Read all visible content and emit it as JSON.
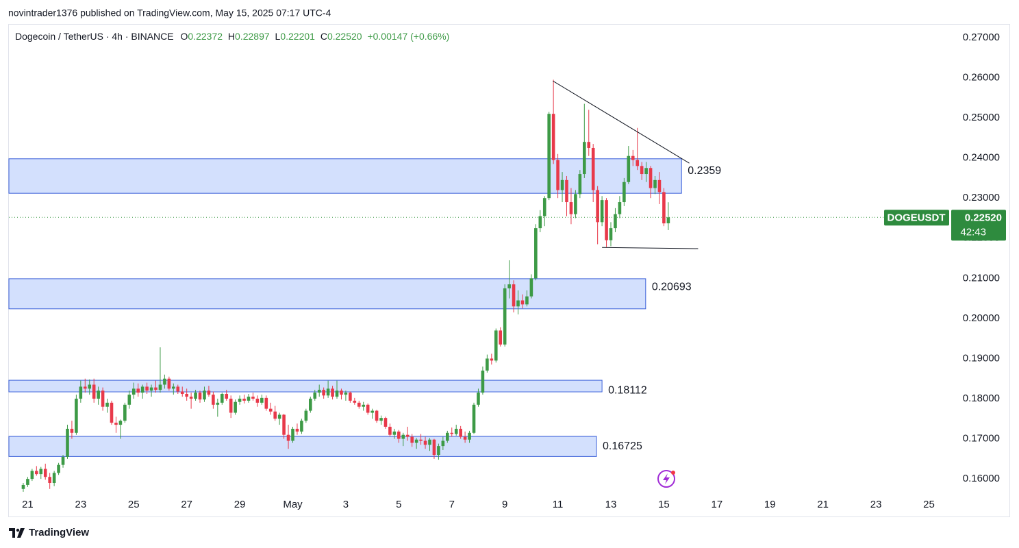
{
  "chart_data": {
    "type": "candlestick",
    "published": "novintrader1376 published on TradingView.com, May 15, 2025 07:17 UTC-4",
    "instrument": "Dogecoin / TetherUS · 4h · BINANCE",
    "legend": {
      "o_label": "O",
      "open": 0.22372,
      "h_label": "H",
      "high": 0.22897,
      "l_label": "L",
      "low": 0.22201,
      "c_label": "C",
      "close": {
        "value": 0.2252,
        "label": "0.22520"
      },
      "change": {
        "value": 0.00147,
        "label": "+0.00147"
      },
      "change_pct": {
        "value": 0.66,
        "label": "(+0.66%)"
      }
    },
    "brand": "TradingView",
    "up_color": "#3d9a46",
    "down_color": "#e8394a",
    "zone_color": "#d3e0fd",
    "zone_border": "#3a5fd9",
    "xlim": [
      "2025-04-20T07:00",
      "2025-05-25T22:00"
    ],
    "ylim": [
      0.1561,
      0.2734
    ],
    "grid": false,
    "yticks": [
      {
        "value": 0.16,
        "label": "0.16000"
      },
      {
        "value": 0.17,
        "label": "0.17000"
      },
      {
        "value": 0.18,
        "label": "0.18000"
      },
      {
        "value": 0.19,
        "label": "0.19000"
      },
      {
        "value": 0.2,
        "label": "0.20000"
      },
      {
        "value": 0.21,
        "label": "0.21000"
      },
      {
        "value": 0.22,
        "label": "0.22000"
      },
      {
        "value": 0.23,
        "label": "0.23000"
      },
      {
        "value": 0.24,
        "label": "0.24000"
      },
      {
        "value": 0.25,
        "label": "0.25000"
      },
      {
        "value": 0.26,
        "label": "0.26000"
      },
      {
        "value": 0.27,
        "label": "0.27000"
      }
    ],
    "xticks": [
      {
        "value": "2025-04-21T00:00",
        "label": "21"
      },
      {
        "value": "2025-04-23T00:00",
        "label": "23"
      },
      {
        "value": "2025-04-25T00:00",
        "label": "25"
      },
      {
        "value": "2025-04-27T00:00",
        "label": "27"
      },
      {
        "value": "2025-04-29T00:00",
        "label": "29"
      },
      {
        "value": "2025-05-01T00:00",
        "label": "May"
      },
      {
        "value": "2025-05-03T00:00",
        "label": "3"
      },
      {
        "value": "2025-05-05T00:00",
        "label": "5"
      },
      {
        "value": "2025-05-07T00:00",
        "label": "7"
      },
      {
        "value": "2025-05-09T00:00",
        "label": "9"
      },
      {
        "value": "2025-05-11T00:00",
        "label": "11"
      },
      {
        "value": "2025-05-13T00:00",
        "label": "13"
      },
      {
        "value": "2025-05-15T00:00",
        "label": "15"
      },
      {
        "value": "2025-05-17T00:00",
        "label": "17"
      },
      {
        "value": "2025-05-19T00:00",
        "label": "19"
      },
      {
        "value": "2025-05-21T00:00",
        "label": "21"
      },
      {
        "value": "2025-05-23T00:00",
        "label": "23"
      },
      {
        "value": "2025-05-25T00:00",
        "label": "25"
      }
    ],
    "x": [
      "2025-04-20T20:00",
      "2025-04-21T00:00",
      "2025-04-21T04:00",
      "2025-04-21T08:00",
      "2025-04-21T12:00",
      "2025-04-21T16:00",
      "2025-04-21T20:00",
      "2025-04-22T00:00",
      "2025-04-22T04:00",
      "2025-04-22T08:00",
      "2025-04-22T12:00",
      "2025-04-22T16:00",
      "2025-04-22T20:00",
      "2025-04-23T00:00",
      "2025-04-23T04:00",
      "2025-04-23T08:00",
      "2025-04-23T12:00",
      "2025-04-23T16:00",
      "2025-04-23T20:00",
      "2025-04-24T00:00",
      "2025-04-24T04:00",
      "2025-04-24T08:00",
      "2025-04-24T12:00",
      "2025-04-24T16:00",
      "2025-04-24T20:00",
      "2025-04-25T00:00",
      "2025-04-25T04:00",
      "2025-04-25T08:00",
      "2025-04-25T12:00",
      "2025-04-25T16:00",
      "2025-04-25T20:00",
      "2025-04-26T00:00",
      "2025-04-26T04:00",
      "2025-04-26T08:00",
      "2025-04-26T12:00",
      "2025-04-26T16:00",
      "2025-04-26T20:00",
      "2025-04-27T00:00",
      "2025-04-27T04:00",
      "2025-04-27T08:00",
      "2025-04-27T12:00",
      "2025-04-27T16:00",
      "2025-04-27T20:00",
      "2025-04-28T00:00",
      "2025-04-28T04:00",
      "2025-04-28T08:00",
      "2025-04-28T12:00",
      "2025-04-28T16:00",
      "2025-04-28T20:00",
      "2025-04-29T00:00",
      "2025-04-29T04:00",
      "2025-04-29T08:00",
      "2025-04-29T12:00",
      "2025-04-29T16:00",
      "2025-04-29T20:00",
      "2025-04-30T00:00",
      "2025-04-30T04:00",
      "2025-04-30T08:00",
      "2025-04-30T12:00",
      "2025-04-30T16:00",
      "2025-04-30T20:00",
      "2025-05-01T00:00",
      "2025-05-01T04:00",
      "2025-05-01T08:00",
      "2025-05-01T12:00",
      "2025-05-01T16:00",
      "2025-05-01T20:00",
      "2025-05-02T00:00",
      "2025-05-02T04:00",
      "2025-05-02T08:00",
      "2025-05-02T12:00",
      "2025-05-02T16:00",
      "2025-05-02T20:00",
      "2025-05-03T00:00",
      "2025-05-03T04:00",
      "2025-05-03T08:00",
      "2025-05-03T12:00",
      "2025-05-03T16:00",
      "2025-05-03T20:00",
      "2025-05-04T00:00",
      "2025-05-04T04:00",
      "2025-05-04T08:00",
      "2025-05-04T12:00",
      "2025-05-04T16:00",
      "2025-05-04T20:00",
      "2025-05-05T00:00",
      "2025-05-05T04:00",
      "2025-05-05T08:00",
      "2025-05-05T12:00",
      "2025-05-05T16:00",
      "2025-05-05T20:00",
      "2025-05-06T00:00",
      "2025-05-06T04:00",
      "2025-05-06T08:00",
      "2025-05-06T12:00",
      "2025-05-06T16:00",
      "2025-05-06T20:00",
      "2025-05-07T00:00",
      "2025-05-07T04:00",
      "2025-05-07T08:00",
      "2025-05-07T12:00",
      "2025-05-07T16:00",
      "2025-05-07T20:00",
      "2025-05-08T00:00",
      "2025-05-08T04:00",
      "2025-05-08T08:00",
      "2025-05-08T12:00",
      "2025-05-08T16:00",
      "2025-05-08T20:00",
      "2025-05-09T00:00",
      "2025-05-09T04:00",
      "2025-05-09T08:00",
      "2025-05-09T12:00",
      "2025-05-09T16:00",
      "2025-05-09T20:00",
      "2025-05-10T00:00",
      "2025-05-10T04:00",
      "2025-05-10T08:00",
      "2025-05-10T12:00",
      "2025-05-10T16:00",
      "2025-05-10T20:00",
      "2025-05-11T00:00",
      "2025-05-11T04:00",
      "2025-05-11T08:00",
      "2025-05-11T12:00",
      "2025-05-11T16:00",
      "2025-05-11T20:00",
      "2025-05-12T00:00",
      "2025-05-12T04:00",
      "2025-05-12T08:00",
      "2025-05-12T12:00",
      "2025-05-12T16:00",
      "2025-05-12T20:00",
      "2025-05-13T00:00",
      "2025-05-13T04:00",
      "2025-05-13T08:00",
      "2025-05-13T12:00",
      "2025-05-13T16:00",
      "2025-05-13T20:00",
      "2025-05-14T00:00",
      "2025-05-14T04:00",
      "2025-05-14T08:00",
      "2025-05-14T12:00",
      "2025-05-14T16:00",
      "2025-05-14T20:00",
      "2025-05-15T00:00",
      "2025-05-15T04:00"
    ],
    "ohlc": [
      [
        0.1575,
        0.159,
        0.1568,
        0.1585
      ],
      [
        0.1585,
        0.1605,
        0.158,
        0.16
      ],
      [
        0.16,
        0.1625,
        0.1595,
        0.162
      ],
      [
        0.162,
        0.1632,
        0.1608,
        0.1612
      ],
      [
        0.1612,
        0.163,
        0.16,
        0.1625
      ],
      [
        0.1625,
        0.1638,
        0.1598,
        0.1605
      ],
      [
        0.1605,
        0.1615,
        0.1575,
        0.159
      ],
      [
        0.159,
        0.162,
        0.1582,
        0.1615
      ],
      [
        0.1615,
        0.164,
        0.161,
        0.1635
      ],
      [
        0.1635,
        0.166,
        0.1628,
        0.1655
      ],
      [
        0.1655,
        0.1735,
        0.165,
        0.1725
      ],
      [
        0.1725,
        0.1745,
        0.17,
        0.1715
      ],
      [
        0.1715,
        0.181,
        0.171,
        0.18
      ],
      [
        0.18,
        0.1845,
        0.179,
        0.183
      ],
      [
        0.183,
        0.185,
        0.1815,
        0.1825
      ],
      [
        0.1825,
        0.1848,
        0.181,
        0.1835
      ],
      [
        0.1835,
        0.185,
        0.179,
        0.18
      ],
      [
        0.18,
        0.183,
        0.1785,
        0.182
      ],
      [
        0.182,
        0.1828,
        0.177,
        0.178
      ],
      [
        0.178,
        0.18,
        0.1765,
        0.179
      ],
      [
        0.179,
        0.1795,
        0.1735,
        0.174
      ],
      [
        0.174,
        0.1755,
        0.1715,
        0.1735
      ],
      [
        0.1735,
        0.1748,
        0.17,
        0.1745
      ],
      [
        0.1745,
        0.179,
        0.174,
        0.1785
      ],
      [
        0.1785,
        0.182,
        0.1775,
        0.181
      ],
      [
        0.181,
        0.184,
        0.18,
        0.1825
      ],
      [
        0.1825,
        0.1838,
        0.1805,
        0.1815
      ],
      [
        0.1815,
        0.1835,
        0.18,
        0.183
      ],
      [
        0.183,
        0.184,
        0.1812,
        0.182
      ],
      [
        0.182,
        0.1835,
        0.1805,
        0.1828
      ],
      [
        0.1828,
        0.1845,
        0.1815,
        0.1822
      ],
      [
        0.1822,
        0.1928,
        0.1815,
        0.1835
      ],
      [
        0.1835,
        0.186,
        0.1825,
        0.185
      ],
      [
        0.185,
        0.1855,
        0.182,
        0.1825
      ],
      [
        0.1825,
        0.1838,
        0.181,
        0.183
      ],
      [
        0.183,
        0.1835,
        0.1812,
        0.1818
      ],
      [
        0.1818,
        0.183,
        0.1805,
        0.1812
      ],
      [
        0.1812,
        0.1825,
        0.1795,
        0.1805
      ],
      [
        0.1805,
        0.1815,
        0.1775,
        0.18
      ],
      [
        0.18,
        0.1822,
        0.1795,
        0.1815
      ],
      [
        0.1815,
        0.182,
        0.179,
        0.1798
      ],
      [
        0.1798,
        0.183,
        0.1792,
        0.182
      ],
      [
        0.182,
        0.1832,
        0.1805,
        0.181
      ],
      [
        0.181,
        0.1818,
        0.1775,
        0.1785
      ],
      [
        0.1785,
        0.18,
        0.1755,
        0.179
      ],
      [
        0.179,
        0.1815,
        0.1785,
        0.1812
      ],
      [
        0.1812,
        0.1822,
        0.1795,
        0.18
      ],
      [
        0.18,
        0.1808,
        0.1752,
        0.1765
      ],
      [
        0.1765,
        0.1798,
        0.176,
        0.1792
      ],
      [
        0.1792,
        0.1808,
        0.1785,
        0.18
      ],
      [
        0.18,
        0.181,
        0.1788,
        0.1795
      ],
      [
        0.1795,
        0.1812,
        0.179,
        0.1805
      ],
      [
        0.1805,
        0.1815,
        0.1795,
        0.18
      ],
      [
        0.18,
        0.1808,
        0.178,
        0.179
      ],
      [
        0.179,
        0.181,
        0.1785,
        0.1802
      ],
      [
        0.1802,
        0.1808,
        0.177,
        0.1775
      ],
      [
        0.1775,
        0.179,
        0.176,
        0.1768
      ],
      [
        0.1768,
        0.1782,
        0.1745,
        0.175
      ],
      [
        0.175,
        0.1765,
        0.1735,
        0.176
      ],
      [
        0.176,
        0.1762,
        0.17,
        0.171
      ],
      [
        0.171,
        0.1735,
        0.1675,
        0.1695
      ],
      [
        0.1695,
        0.173,
        0.169,
        0.1725
      ],
      [
        0.1725,
        0.1738,
        0.171,
        0.1718
      ],
      [
        0.1718,
        0.175,
        0.1712,
        0.1745
      ],
      [
        0.1745,
        0.1775,
        0.174,
        0.177
      ],
      [
        0.177,
        0.1805,
        0.1765,
        0.18
      ],
      [
        0.18,
        0.1822,
        0.1795,
        0.1815
      ],
      [
        0.1815,
        0.1835,
        0.1805,
        0.1822
      ],
      [
        0.1822,
        0.1828,
        0.18,
        0.1808
      ],
      [
        0.1808,
        0.1845,
        0.1802,
        0.1825
      ],
      [
        0.1825,
        0.1832,
        0.1798,
        0.1805
      ],
      [
        0.1805,
        0.1845,
        0.18,
        0.182
      ],
      [
        0.182,
        0.1825,
        0.1798,
        0.181
      ],
      [
        0.181,
        0.182,
        0.1795,
        0.1815
      ],
      [
        0.1815,
        0.1818,
        0.179,
        0.1795
      ],
      [
        0.1795,
        0.1802,
        0.1785,
        0.179
      ],
      [
        0.179,
        0.1795,
        0.1775,
        0.178
      ],
      [
        0.178,
        0.1792,
        0.177,
        0.1785
      ],
      [
        0.1785,
        0.1788,
        0.176,
        0.1765
      ],
      [
        0.1765,
        0.1775,
        0.175,
        0.177
      ],
      [
        0.177,
        0.1772,
        0.174,
        0.1745
      ],
      [
        0.1745,
        0.1758,
        0.1735,
        0.1752
      ],
      [
        0.1752,
        0.1755,
        0.1725,
        0.173
      ],
      [
        0.173,
        0.1738,
        0.1705,
        0.171
      ],
      [
        0.171,
        0.1725,
        0.17,
        0.1718
      ],
      [
        0.1718,
        0.1722,
        0.169,
        0.17
      ],
      [
        0.17,
        0.1715,
        0.1682,
        0.171
      ],
      [
        0.171,
        0.173,
        0.1695,
        0.1705
      ],
      [
        0.1705,
        0.1712,
        0.168,
        0.169
      ],
      [
        0.169,
        0.1702,
        0.1675,
        0.1698
      ],
      [
        0.1698,
        0.1712,
        0.1685,
        0.1695
      ],
      [
        0.1695,
        0.1705,
        0.1675,
        0.1685
      ],
      [
        0.1685,
        0.1702,
        0.167,
        0.1698
      ],
      [
        0.1698,
        0.17,
        0.165,
        0.166
      ],
      [
        0.166,
        0.1688,
        0.1648,
        0.1682
      ],
      [
        0.1682,
        0.1705,
        0.1672,
        0.1695
      ],
      [
        0.1695,
        0.172,
        0.169,
        0.1715
      ],
      [
        0.1715,
        0.1728,
        0.1705,
        0.1712
      ],
      [
        0.1712,
        0.1735,
        0.1708,
        0.1725
      ],
      [
        0.1725,
        0.1732,
        0.17,
        0.1705
      ],
      [
        0.1705,
        0.1718,
        0.169,
        0.1698
      ],
      [
        0.1698,
        0.172,
        0.169,
        0.1715
      ],
      [
        0.1715,
        0.179,
        0.1712,
        0.1785
      ],
      [
        0.1785,
        0.1825,
        0.178,
        0.1815
      ],
      [
        0.1815,
        0.188,
        0.181,
        0.187
      ],
      [
        0.187,
        0.191,
        0.1865,
        0.19
      ],
      [
        0.19,
        0.1912,
        0.1885,
        0.1895
      ],
      [
        0.1895,
        0.1975,
        0.189,
        0.197
      ],
      [
        0.197,
        0.1978,
        0.193,
        0.1935
      ],
      [
        0.1935,
        0.2085,
        0.193,
        0.2075
      ],
      [
        0.2075,
        0.2145,
        0.205,
        0.2085
      ],
      [
        0.2085,
        0.2095,
        0.2015,
        0.203
      ],
      [
        0.203,
        0.207,
        0.201,
        0.2045
      ],
      [
        0.2045,
        0.206,
        0.2025,
        0.2035
      ],
      [
        0.2035,
        0.207,
        0.203,
        0.2055
      ],
      [
        0.2055,
        0.211,
        0.205,
        0.21
      ],
      [
        0.21,
        0.2235,
        0.2095,
        0.2225
      ],
      [
        0.2225,
        0.227,
        0.2215,
        0.2255
      ],
      [
        0.2255,
        0.2305,
        0.223,
        0.23
      ],
      [
        0.23,
        0.2515,
        0.2295,
        0.251
      ],
      [
        0.251,
        0.2595,
        0.2385,
        0.2395
      ],
      [
        0.2395,
        0.241,
        0.23,
        0.232
      ],
      [
        0.232,
        0.2365,
        0.229,
        0.2345
      ],
      [
        0.2345,
        0.2355,
        0.2255,
        0.229
      ],
      [
        0.229,
        0.2325,
        0.2235,
        0.226
      ],
      [
        0.226,
        0.232,
        0.225,
        0.231
      ],
      [
        0.231,
        0.237,
        0.23,
        0.236
      ],
      [
        0.236,
        0.2535,
        0.235,
        0.244
      ],
      [
        0.244,
        0.252,
        0.2405,
        0.2425
      ],
      [
        0.2425,
        0.2435,
        0.229,
        0.232
      ],
      [
        0.232,
        0.233,
        0.2185,
        0.224
      ],
      [
        0.224,
        0.2305,
        0.223,
        0.2295
      ],
      [
        0.2295,
        0.23,
        0.2178,
        0.2195
      ],
      [
        0.2195,
        0.224,
        0.218,
        0.2225
      ],
      [
        0.2225,
        0.2275,
        0.2215,
        0.226
      ],
      [
        0.226,
        0.2305,
        0.225,
        0.229
      ],
      [
        0.229,
        0.235,
        0.228,
        0.234
      ],
      [
        0.234,
        0.243,
        0.2335,
        0.2405
      ],
      [
        0.2405,
        0.242,
        0.238,
        0.2395
      ],
      [
        0.2395,
        0.2475,
        0.237,
        0.238
      ],
      [
        0.238,
        0.239,
        0.2345,
        0.236
      ],
      [
        0.236,
        0.239,
        0.234,
        0.2375
      ],
      [
        0.2375,
        0.238,
        0.23,
        0.2325
      ],
      [
        0.2325,
        0.2355,
        0.231,
        0.2345
      ],
      [
        0.2345,
        0.2365,
        0.2285,
        0.2315
      ],
      [
        0.2315,
        0.2325,
        0.223,
        0.2237
      ],
      [
        0.22372,
        0.22897,
        0.22201,
        0.2252
      ]
    ],
    "zones": [
      {
        "top": 0.2398,
        "bottom": 0.2312,
        "end": "2025-05-15T16:00",
        "level": 0.2359
      },
      {
        "top": 0.2099,
        "bottom": 0.2024,
        "end": "2025-05-14T07:30",
        "level": 0.20693
      },
      {
        "top": 0.1846,
        "bottom": 0.1817,
        "end": "2025-05-12T16:00",
        "level": 0.18112
      },
      {
        "top": 0.1706,
        "bottom": 0.1656,
        "end": "2025-05-12T11:00",
        "level": 0.16725
      }
    ],
    "trendlines": [
      {
        "x": [
          "2025-05-10T19:30",
          "2025-05-15T23:00"
        ],
        "y": [
          0.2592,
          0.2387
        ]
      },
      {
        "x": [
          "2025-05-12T16:00",
          "2025-05-16T07:00"
        ],
        "y": [
          0.2177,
          0.2174
        ]
      }
    ],
    "last_price": {
      "symbol": "DOGEUSDT",
      "value": 0.2252,
      "label": "0.22520",
      "countdown": "42:43"
    }
  }
}
